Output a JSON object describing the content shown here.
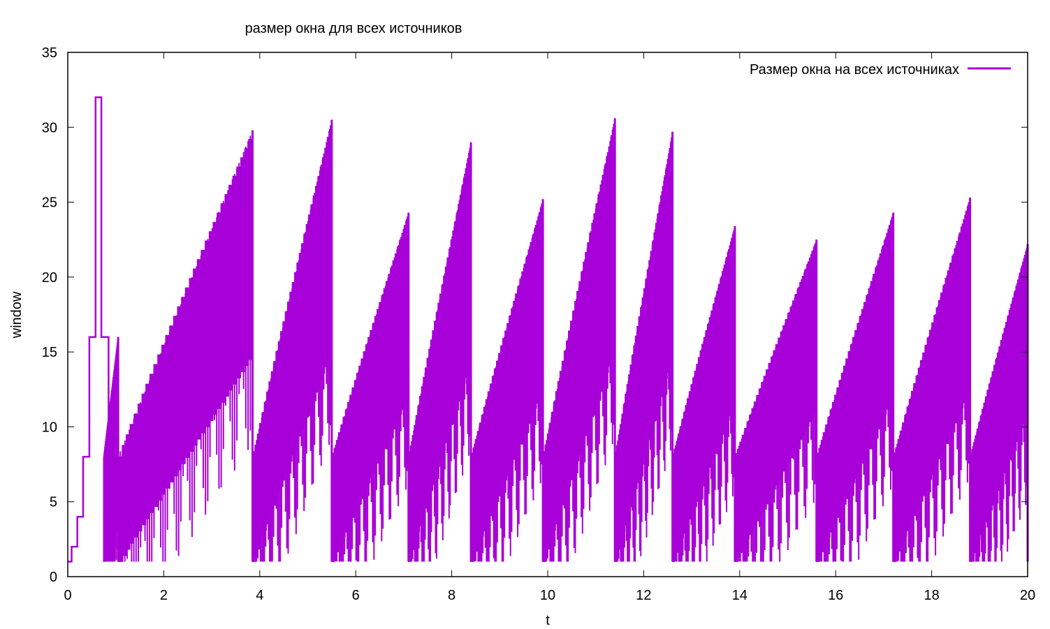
{
  "chart_data": {
    "type": "line",
    "title": "размер окна для всех источников",
    "xlabel": "t",
    "ylabel": "window",
    "xlim": [
      0,
      20
    ],
    "ylim": [
      0,
      35
    ],
    "xticks": [
      0,
      2,
      4,
      6,
      8,
      10,
      12,
      14,
      16,
      18,
      20
    ],
    "yticks": [
      0,
      5,
      10,
      15,
      20,
      25,
      30,
      35
    ],
    "grid": false,
    "legend_position": "top-right",
    "color": "#a800d8",
    "series": [
      {
        "name": "Размер окна на всех источниках",
        "startup": [
          [
            0.0,
            1
          ],
          [
            0.08,
            1
          ],
          [
            0.08,
            2
          ],
          [
            0.2,
            2
          ],
          [
            0.2,
            4
          ],
          [
            0.32,
            4
          ],
          [
            0.32,
            8
          ],
          [
            0.45,
            8
          ],
          [
            0.45,
            16
          ],
          [
            0.58,
            16
          ],
          [
            0.58,
            32
          ],
          [
            0.7,
            32
          ],
          [
            0.7,
            16
          ],
          [
            0.85,
            16
          ],
          [
            0.85,
            8
          ],
          [
            1.05,
            8
          ]
        ],
        "envelope_peaks": [
          {
            "t_start": 0.75,
            "t_end": 1.05,
            "low": 1,
            "high": 16
          },
          {
            "t_start": 1.05,
            "t_end": 3.85,
            "low": 1,
            "high": 29.8
          },
          {
            "t_start": 3.85,
            "t_end": 5.5,
            "low": 1,
            "high": 30.5
          },
          {
            "t_start": 5.5,
            "t_end": 7.1,
            "low": 1,
            "high": 24.3
          },
          {
            "t_start": 7.1,
            "t_end": 8.4,
            "low": 1,
            "high": 29.0
          },
          {
            "t_start": 8.4,
            "t_end": 9.9,
            "low": 1,
            "high": 25.2
          },
          {
            "t_start": 9.9,
            "t_end": 11.4,
            "low": 1,
            "high": 30.6
          },
          {
            "t_start": 11.4,
            "t_end": 12.6,
            "low": 1,
            "high": 29.7
          },
          {
            "t_start": 12.6,
            "t_end": 13.9,
            "low": 1,
            "high": 23.4
          },
          {
            "t_start": 13.9,
            "t_end": 15.6,
            "low": 1,
            "high": 22.5
          },
          {
            "t_start": 15.6,
            "t_end": 17.2,
            "low": 1,
            "high": 24.3
          },
          {
            "t_start": 17.2,
            "t_end": 18.8,
            "low": 1,
            "high": 25.3
          },
          {
            "t_start": 18.8,
            "t_end": 20.0,
            "low": 1,
            "high": 22.2
          }
        ]
      }
    ]
  }
}
